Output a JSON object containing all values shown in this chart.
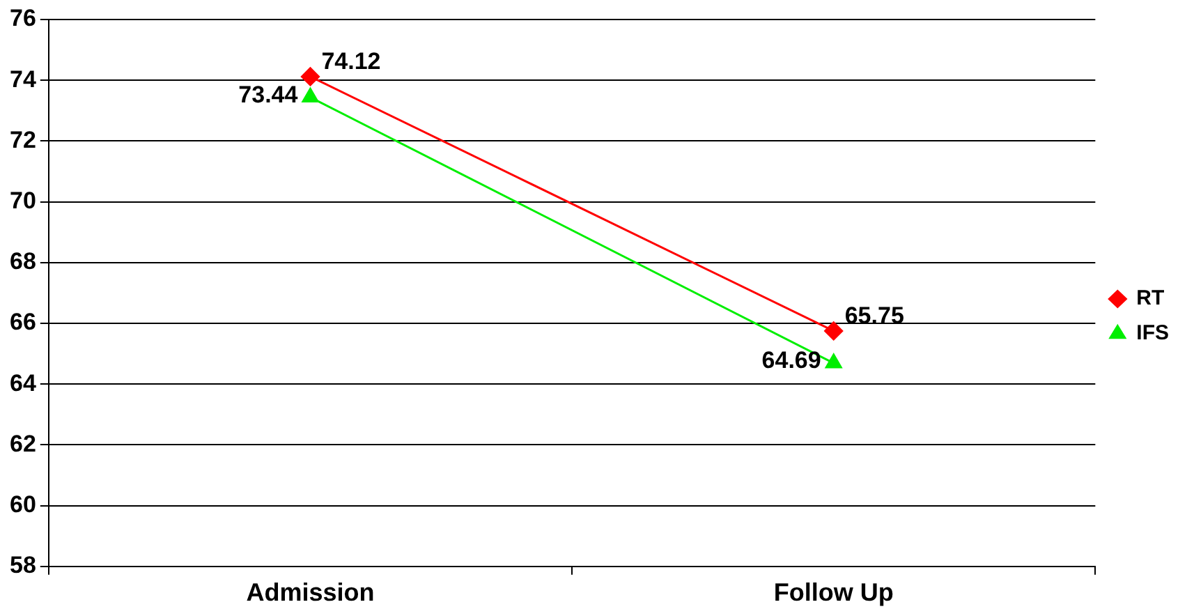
{
  "chart_data": {
    "type": "line",
    "categories": [
      "Admission",
      "Follow Up"
    ],
    "series": [
      {
        "name": "RT",
        "color": "#ff0000",
        "values": [
          74.12,
          65.75
        ],
        "marker": "diamond"
      },
      {
        "name": "IFS",
        "color": "#00ee00",
        "values": [
          73.44,
          64.69
        ],
        "marker": "triangle"
      }
    ],
    "ylim": [
      58,
      76
    ],
    "yticks": [
      58,
      60,
      62,
      64,
      66,
      68,
      70,
      72,
      74,
      76
    ],
    "grid": "y",
    "legend": "right",
    "data_labels": true
  }
}
